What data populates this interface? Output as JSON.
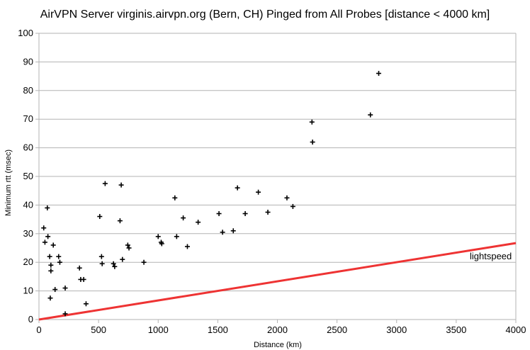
{
  "chart_data": {
    "type": "scatter",
    "title": "AirVPN Server virginis.airvpn.org (Bern, CH) Pinged from All Probes [distance < 4000 km]",
    "xlabel": "Distance (km)",
    "ylabel": "Minimum rtt (msec)",
    "xlim": [
      0,
      4000
    ],
    "ylim": [
      0,
      100
    ],
    "xticks": [
      0,
      500,
      1000,
      1500,
      2000,
      2500,
      3000,
      3500,
      4000
    ],
    "yticks": [
      0,
      10,
      20,
      30,
      40,
      50,
      60,
      70,
      80,
      90,
      100
    ],
    "grid": "horizontal",
    "marker": "+",
    "points": [
      [
        40,
        32
      ],
      [
        50,
        27
      ],
      [
        70,
        39
      ],
      [
        75,
        29
      ],
      [
        90,
        22
      ],
      [
        100,
        19
      ],
      [
        100,
        17
      ],
      [
        95,
        7.5
      ],
      [
        120,
        26
      ],
      [
        135,
        10.5
      ],
      [
        165,
        22
      ],
      [
        175,
        20
      ],
      [
        220,
        11
      ],
      [
        220,
        2
      ],
      [
        340,
        18
      ],
      [
        350,
        14
      ],
      [
        375,
        14
      ],
      [
        395,
        5.5
      ],
      [
        510,
        36
      ],
      [
        525,
        22
      ],
      [
        530,
        19.5
      ],
      [
        555,
        47.5
      ],
      [
        625,
        19.5
      ],
      [
        635,
        18.5
      ],
      [
        680,
        34.5
      ],
      [
        690,
        47
      ],
      [
        700,
        21
      ],
      [
        745,
        26
      ],
      [
        755,
        25
      ],
      [
        880,
        20
      ],
      [
        1000,
        29
      ],
      [
        1025,
        27
      ],
      [
        1030,
        26.5
      ],
      [
        1140,
        42.5
      ],
      [
        1155,
        29
      ],
      [
        1210,
        35.5
      ],
      [
        1245,
        25.5
      ],
      [
        1335,
        34
      ],
      [
        1510,
        37
      ],
      [
        1540,
        30.5
      ],
      [
        1630,
        31
      ],
      [
        1665,
        46
      ],
      [
        1730,
        37
      ],
      [
        1840,
        44.5
      ],
      [
        1920,
        37.5
      ],
      [
        2080,
        42.5
      ],
      [
        2130,
        39.5
      ],
      [
        2290,
        69
      ],
      [
        2295,
        62
      ],
      [
        2780,
        71.5
      ],
      [
        2850,
        86
      ]
    ],
    "reference_line": {
      "name": "lightspeed",
      "color": "#ee3333",
      "points": [
        [
          0,
          0
        ],
        [
          4000,
          26.7
        ]
      ]
    }
  }
}
